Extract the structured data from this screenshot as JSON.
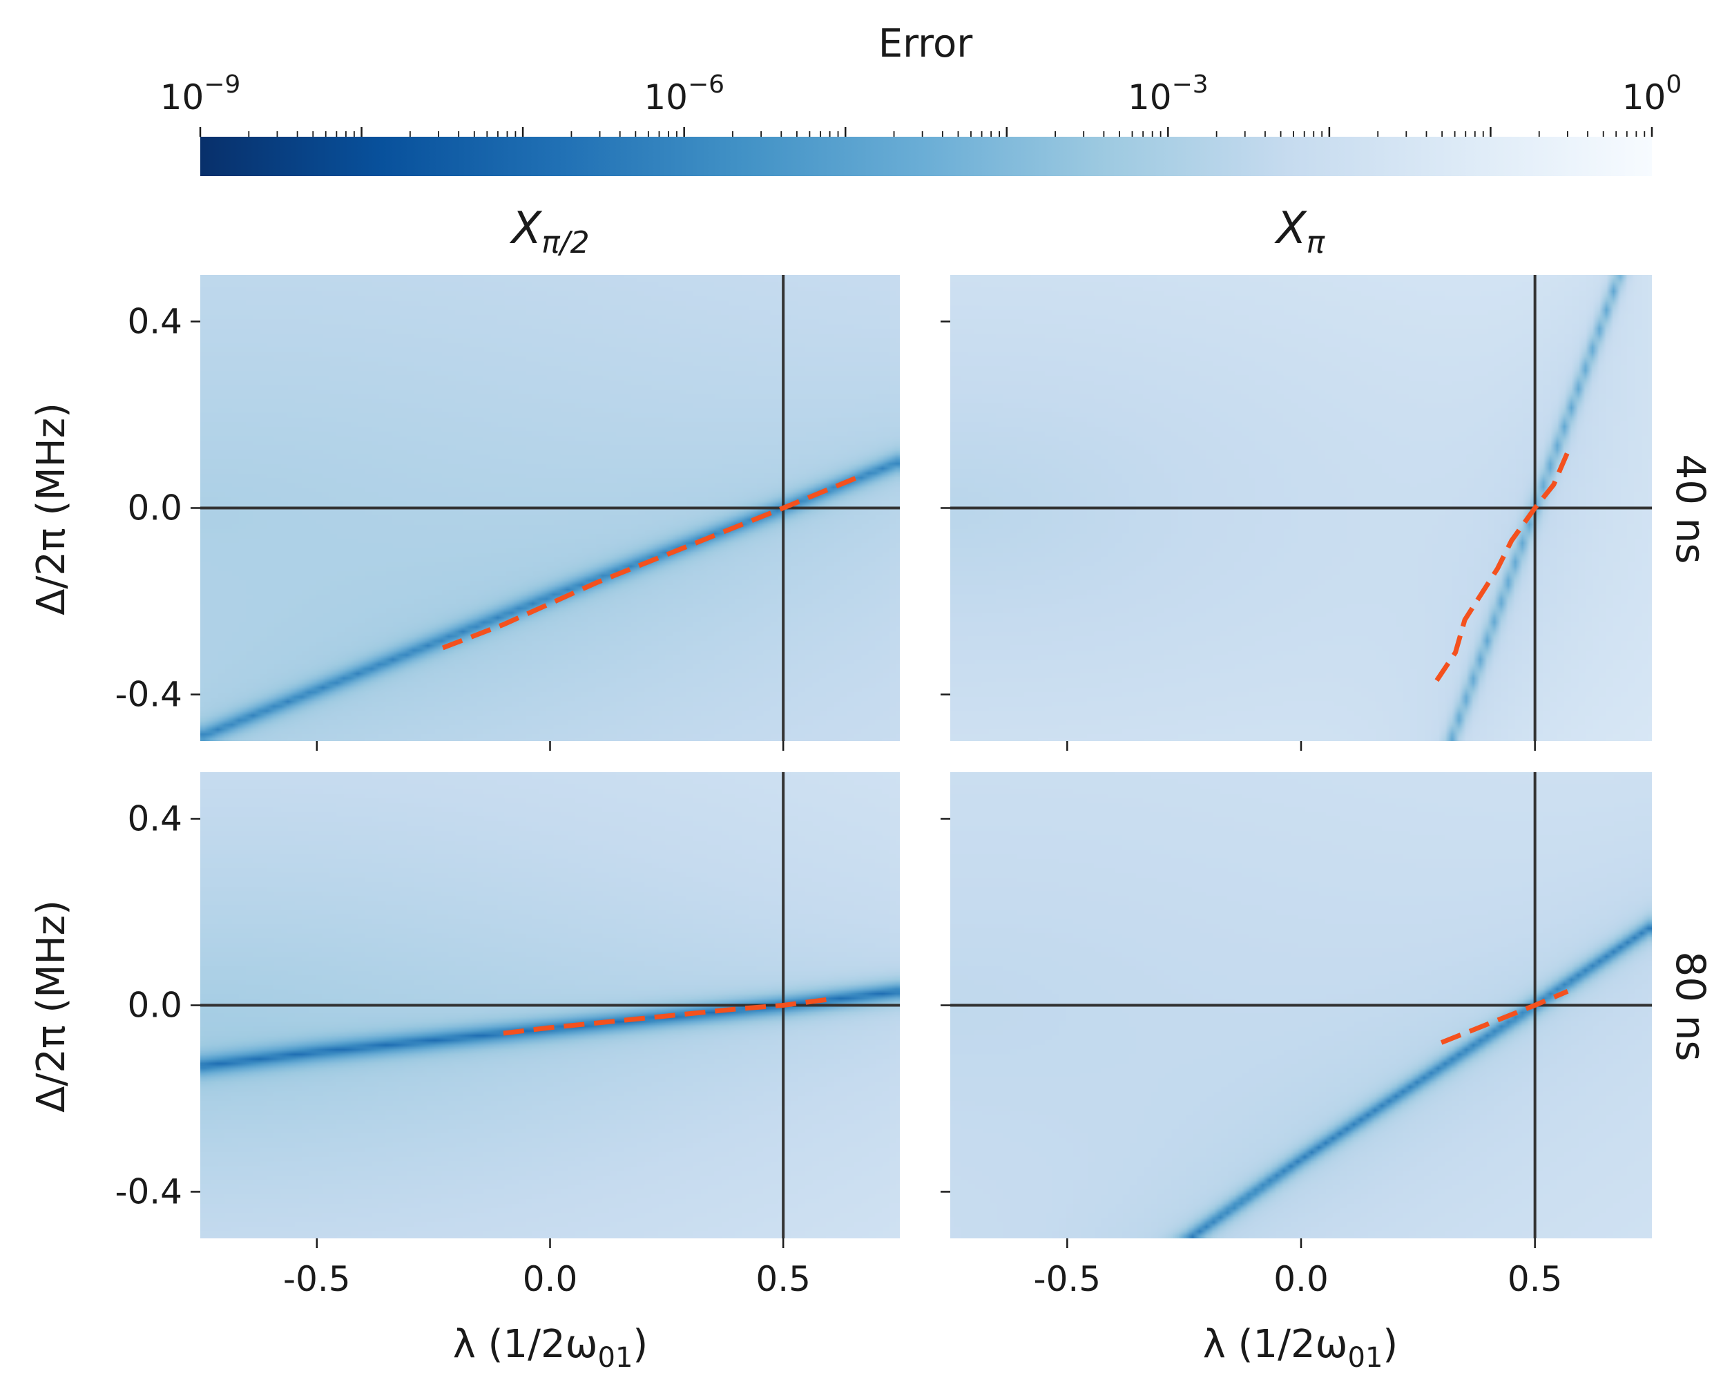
{
  "colorbar": {
    "label": "Error",
    "scale": "log",
    "colormap": "Blues_r",
    "range": [
      1e-09,
      1
    ],
    "ticks": [
      {
        "base": "10",
        "exp": "−9",
        "value": 1e-09
      },
      {
        "base": "10",
        "exp": "−6",
        "value": 1e-06
      },
      {
        "base": "10",
        "exp": "−3",
        "value": 0.001
      },
      {
        "base": "10",
        "exp": "0",
        "value": 1
      }
    ],
    "colors": [
      "#08306b",
      "#08519c",
      "#2171b5",
      "#4292c6",
      "#6baed6",
      "#9ecae1",
      "#c6dbef",
      "#deebf7",
      "#f7fbff"
    ]
  },
  "columns": [
    {
      "title_main": "X",
      "title_sub": "π/2"
    },
    {
      "title_main": "X",
      "title_sub": "π"
    }
  ],
  "rows": [
    {
      "label": "40 ns"
    },
    {
      "label": "80 ns"
    }
  ],
  "axes": {
    "xlabel_main": "λ (1/2ω",
    "xlabel_sub": "01",
    "xlabel_end": ")",
    "ylabel": "Δ/2π (MHz)",
    "xlim": [
      -0.75,
      0.75
    ],
    "ylim": [
      -0.5,
      0.5
    ],
    "xticks": [
      {
        "value": -0.5,
        "label": "-0.5"
      },
      {
        "value": 0.0,
        "label": "0.0"
      },
      {
        "value": 0.5,
        "label": "0.5"
      }
    ],
    "yticks": [
      {
        "value": 0.4,
        "label": "0.4"
      },
      {
        "value": 0.0,
        "label": "0.0"
      },
      {
        "value": -0.4,
        "label": "-0.4"
      }
    ],
    "reference_lines": {
      "x": 0.5,
      "y": 0.0,
      "color": "#333333"
    },
    "fit_line_color": "#f4511e"
  },
  "chart_data": [
    {
      "type": "heatmap",
      "panel": "X_pi/2, 40 ns",
      "xlim": [
        -0.75,
        0.75
      ],
      "ylim": [
        -0.5,
        0.5
      ],
      "min_error_valley": {
        "x": [
          -0.75,
          -0.5,
          -0.25,
          0.0,
          0.25,
          0.5,
          0.75
        ],
        "y": [
          -0.49,
          -0.39,
          -0.29,
          -0.19,
          -0.095,
          0.0,
          0.1
        ]
      },
      "valley_log10_error": -5.6,
      "background_log10_error": [
        -2.0,
        -2.9
      ],
      "dashed_fit": {
        "x": [
          -0.23,
          -0.1,
          0.1,
          0.3,
          0.5,
          0.67
        ],
        "y": [
          -0.3,
          -0.25,
          -0.16,
          -0.08,
          0.0,
          0.07
        ]
      }
    },
    {
      "type": "heatmap",
      "panel": "X_pi, 40 ns",
      "xlim": [
        -0.75,
        0.75
      ],
      "ylim": [
        -0.5,
        0.5
      ],
      "min_error_valley": {
        "x": [
          0.32,
          0.41,
          0.5,
          0.59,
          0.68
        ],
        "y": [
          -0.5,
          -0.25,
          0.0,
          0.25,
          0.5
        ]
      },
      "valley_log10_error": -4.2,
      "background_log10_error": [
        -1.2,
        -2.6
      ],
      "dashed_fit": {
        "x": [
          0.29,
          0.33,
          0.35,
          0.42,
          0.45,
          0.5,
          0.54,
          0.57
        ],
        "y": [
          -0.37,
          -0.31,
          -0.24,
          -0.13,
          -0.07,
          0.0,
          0.05,
          0.12
        ]
      }
    },
    {
      "type": "heatmap",
      "panel": "X_pi/2, 80 ns",
      "xlim": [
        -0.75,
        0.75
      ],
      "ylim": [
        -0.5,
        0.5
      ],
      "min_error_valley": {
        "x": [
          -0.75,
          -0.5,
          -0.25,
          0.0,
          0.25,
          0.5,
          0.75
        ],
        "y": [
          -0.13,
          -0.1,
          -0.075,
          -0.05,
          -0.025,
          0.0,
          0.03
        ]
      },
      "valley_log10_error": -6.3,
      "background_log10_error": [
        -1.6,
        -2.8
      ],
      "dashed_fit": {
        "x": [
          -0.1,
          0.0,
          0.1,
          0.2,
          0.3,
          0.4,
          0.5,
          0.6
        ],
        "y": [
          -0.06,
          -0.048,
          -0.038,
          -0.028,
          -0.018,
          -0.008,
          0.0,
          0.013
        ]
      }
    },
    {
      "type": "heatmap",
      "panel": "X_pi, 80 ns",
      "xlim": [
        -0.75,
        0.75
      ],
      "ylim": [
        -0.5,
        0.5
      ],
      "min_error_valley": {
        "x": [
          -0.24,
          0.0,
          0.25,
          0.5,
          0.75
        ],
        "y": [
          -0.5,
          -0.33,
          -0.165,
          0.0,
          0.17
        ]
      },
      "valley_log10_error": -5.8,
      "background_log10_error": [
        -1.7,
        -2.4
      ],
      "dashed_fit": {
        "x": [
          0.3,
          0.4,
          0.5,
          0.57
        ],
        "y": [
          -0.08,
          -0.04,
          0.0,
          0.03
        ]
      }
    }
  ]
}
